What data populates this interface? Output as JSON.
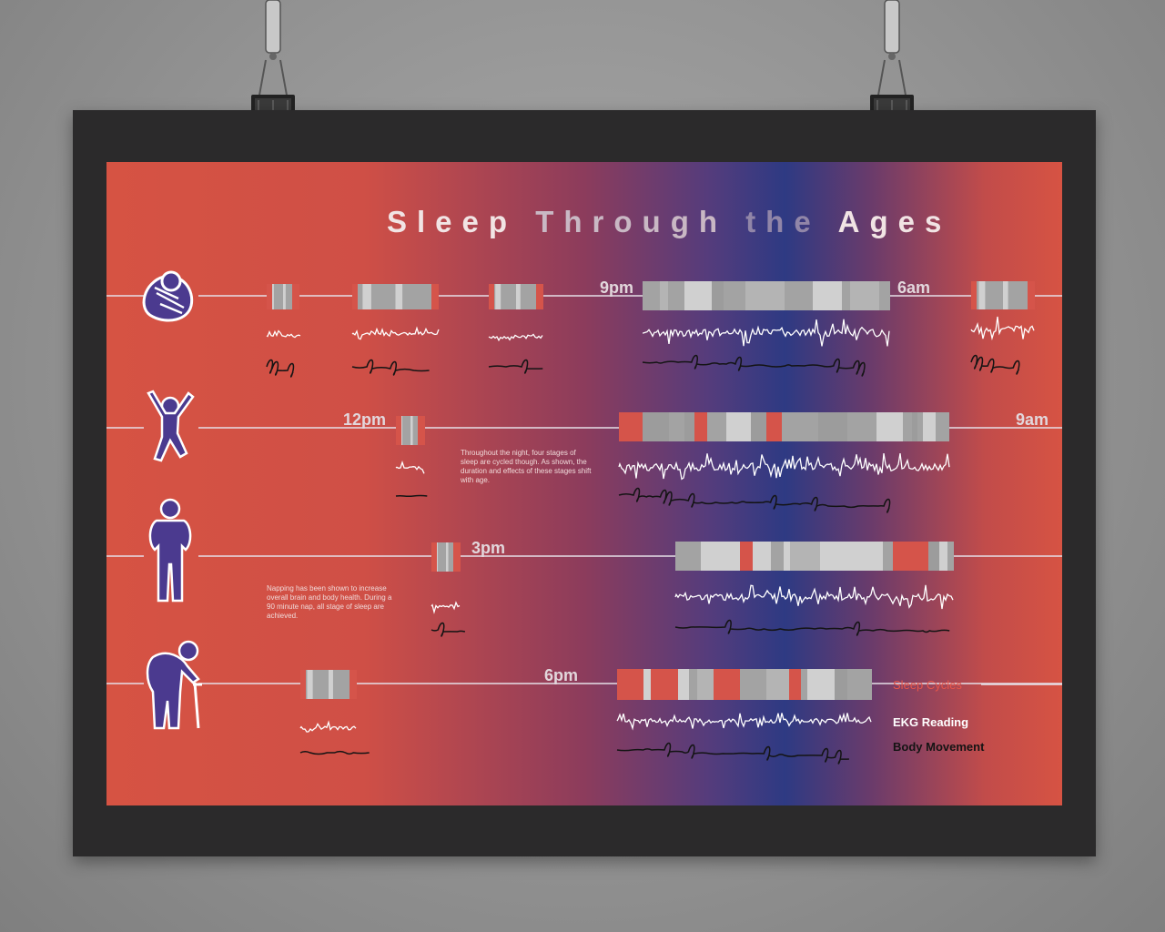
{
  "title": "Sleep Through the Ages",
  "rows": [
    {
      "name": "infant",
      "icon": "swaddled-baby-icon",
      "time_labels": [
        "9pm",
        "6am"
      ]
    },
    {
      "name": "child",
      "icon": "jumping-child-icon",
      "time_labels": [
        "12pm",
        "9am"
      ]
    },
    {
      "name": "adult",
      "icon": "adult-figure-icon",
      "time_labels": [
        "3pm"
      ]
    },
    {
      "name": "elderly",
      "icon": "elderly-cane-icon",
      "time_labels": [
        "6pm"
      ]
    }
  ],
  "notes": {
    "cycles": "Throughout the night, four stages of sleep are cycled though. As shown, the duration and effects of these stages shift with age.",
    "napping": "Napping has been shown to increase overall brain and body health. During a 90 minute nap, all stage of sleep are achieved."
  },
  "legend": {
    "sleep_cycles": "Sleep Cycles",
    "ekg_reading": "EKG Reading",
    "body_movement": "Body Movement"
  },
  "colors": {
    "poster_red": "#d65343",
    "poster_blue": "#2e3a83",
    "cycle_gray": "#a3a3a3",
    "cycle_light": "#d0d0d0",
    "cycle_red": "#d5544a",
    "figure_purple": "#4b3a8f",
    "frame": "#2b2a2b"
  }
}
